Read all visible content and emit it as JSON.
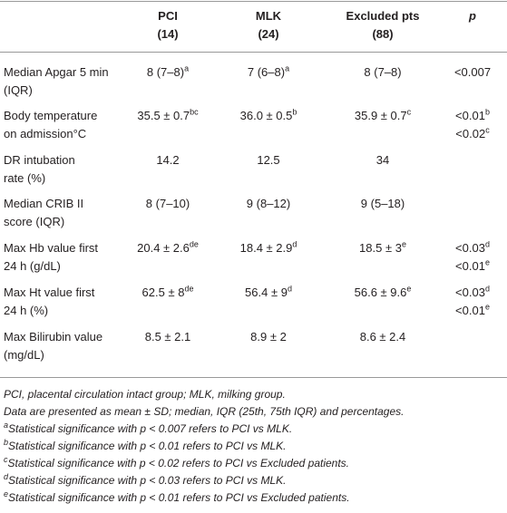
{
  "table": {
    "header": [
      [
        "PCI",
        "(14)"
      ],
      [
        "MLK",
        "(24)"
      ],
      [
        "Excluded pts",
        "(88)"
      ],
      [
        "p"
      ]
    ],
    "rows": [
      {
        "label": [
          "Median Apgar 5 min",
          "(IQR)"
        ],
        "cells": [
          [
            {
              "text": "8 (7–8)",
              "sup": "a"
            }
          ],
          [
            {
              "text": "7 (6–8)",
              "sup": "a"
            }
          ],
          [
            {
              "text": "8 (7–8)"
            }
          ],
          [
            {
              "text": "<0.007"
            }
          ]
        ]
      },
      {
        "label": [
          "Body temperature",
          "on admission°C"
        ],
        "cells": [
          [
            {
              "text": "35.5 ± 0.7",
              "sup": "bc"
            }
          ],
          [
            {
              "text": "36.0 ± 0.5",
              "sup": "b"
            }
          ],
          [
            {
              "text": "35.9 ± 0.7",
              "sup": "c"
            }
          ],
          [
            {
              "text": "<0.01",
              "sup": "b"
            },
            {
              "text": "<0.02",
              "sup": "c"
            }
          ]
        ]
      },
      {
        "label": [
          "DR intubation",
          "rate (%)"
        ],
        "cells": [
          [
            {
              "text": "14.2"
            }
          ],
          [
            {
              "text": "12.5"
            }
          ],
          [
            {
              "text": "34"
            }
          ],
          []
        ]
      },
      {
        "label": [
          "Median CRIB II",
          "score (IQR)"
        ],
        "cells": [
          [
            {
              "text": "8 (7–10)"
            }
          ],
          [
            {
              "text": "9 (8–12)"
            }
          ],
          [
            {
              "text": "9 (5–18)"
            }
          ],
          []
        ]
      },
      {
        "label": [
          "Max Hb value first",
          "24 h (g/dL)"
        ],
        "cells": [
          [
            {
              "text": "20.4 ± 2.6",
              "sup": "de"
            }
          ],
          [
            {
              "text": "18.4 ± 2.9",
              "sup": "d"
            }
          ],
          [
            {
              "text": "18.5 ± 3",
              "sup": "e"
            }
          ],
          [
            {
              "text": "<0.03",
              "sup": "d"
            },
            {
              "text": "<0.01",
              "sup": "e"
            }
          ]
        ]
      },
      {
        "label": [
          "Max Ht value first",
          "24 h (%)"
        ],
        "cells": [
          [
            {
              "text": "62.5 ± 8",
              "sup": "de"
            }
          ],
          [
            {
              "text": "56.4 ± 9",
              "sup": "d"
            }
          ],
          [
            {
              "text": "56.6 ± 9.6",
              "sup": "e"
            }
          ],
          [
            {
              "text": "<0.03",
              "sup": "d"
            },
            {
              "text": "<0.01",
              "sup": "e"
            }
          ]
        ]
      },
      {
        "label": [
          "Max Bilirubin value",
          "(mg/dL)"
        ],
        "cells": [
          [
            {
              "text": "8.5 ± 2.1"
            }
          ],
          [
            {
              "text": "8.9 ± 2"
            }
          ],
          [
            {
              "text": "8.6 ± 2.4"
            }
          ],
          []
        ]
      }
    ]
  },
  "notes": [
    {
      "text": "PCI, placental circulation intact group; MLK, milking group."
    },
    {
      "text": "Data are presented as mean ± SD; median, IQR (25th, 75th IQR) and percentages."
    },
    {
      "sup": "a",
      "text": "Statistical significance with p < 0.007 refers to PCI vs MLK."
    },
    {
      "sup": "b",
      "text": "Statistical significance with p < 0.01 refers to PCI vs MLK."
    },
    {
      "sup": "c",
      "text": "Statistical significance with p < 0.02 refers to PCI vs Excluded patients."
    },
    {
      "sup": "d",
      "text": "Statistical significance with p < 0.03 refers to PCI vs MLK."
    },
    {
      "sup": "e",
      "text": "Statistical significance with p < 0.01 refers to PCI vs Excluded patients."
    }
  ]
}
